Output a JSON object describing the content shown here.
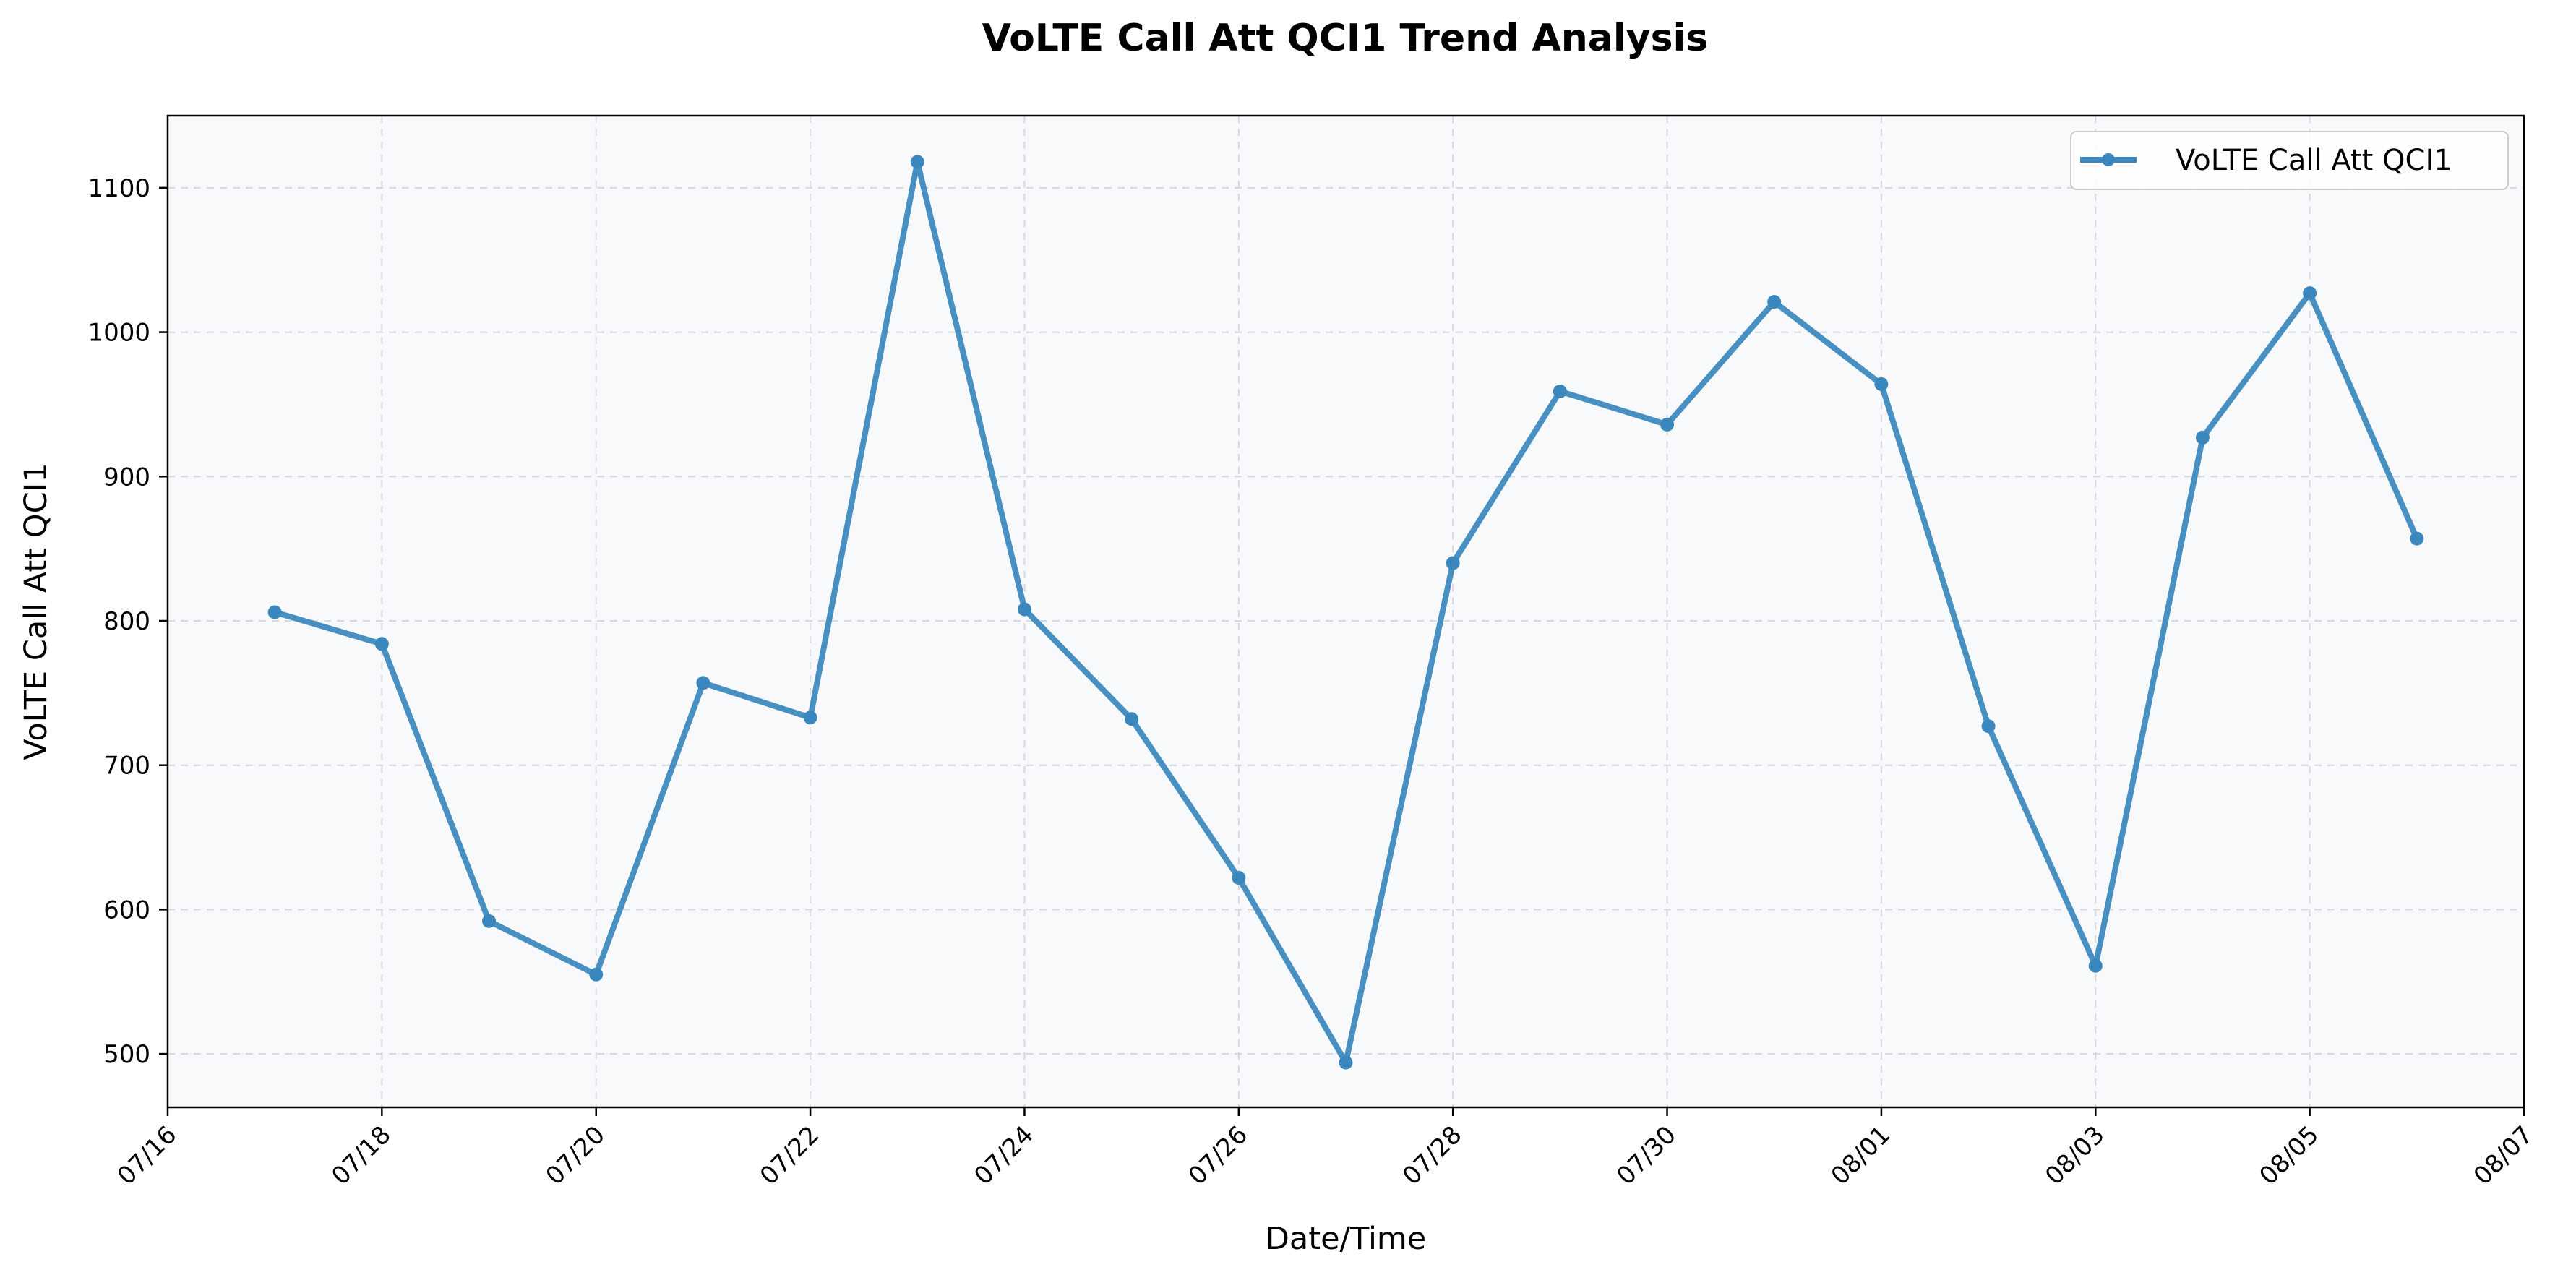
{
  "chart_data": {
    "type": "line",
    "title": "VoLTE Call Att QCI1 Trend Analysis",
    "xlabel": "Date/Time",
    "ylabel": "VoLTE Call Att QCI1",
    "x_tick_labels": [
      "07/16",
      "07/18",
      "07/20",
      "07/22",
      "07/24",
      "07/26",
      "07/28",
      "07/30",
      "08/01",
      "08/03",
      "08/05",
      "08/07"
    ],
    "y_ticks": [
      500,
      600,
      700,
      800,
      900,
      1000,
      1100
    ],
    "xlim": [
      "07/16",
      "08/07"
    ],
    "ylim": [
      463,
      1150
    ],
    "grid": true,
    "legend_position": "top-right",
    "x": [
      "07/17",
      "07/18",
      "07/19",
      "07/20",
      "07/21",
      "07/22",
      "07/23",
      "07/24",
      "07/25",
      "07/26",
      "07/27",
      "07/28",
      "07/29",
      "07/30",
      "07/31",
      "08/01",
      "08/02",
      "08/03",
      "08/04",
      "08/05",
      "08/06"
    ],
    "series": [
      {
        "name": "VoLTE Call Att QCI1",
        "color": "#3a87bd",
        "values": [
          806,
          784,
          592,
          555,
          757,
          733,
          1118,
          808,
          732,
          622,
          494,
          840,
          959,
          936,
          1021,
          964,
          727,
          561,
          927,
          1027,
          857
        ]
      }
    ]
  }
}
